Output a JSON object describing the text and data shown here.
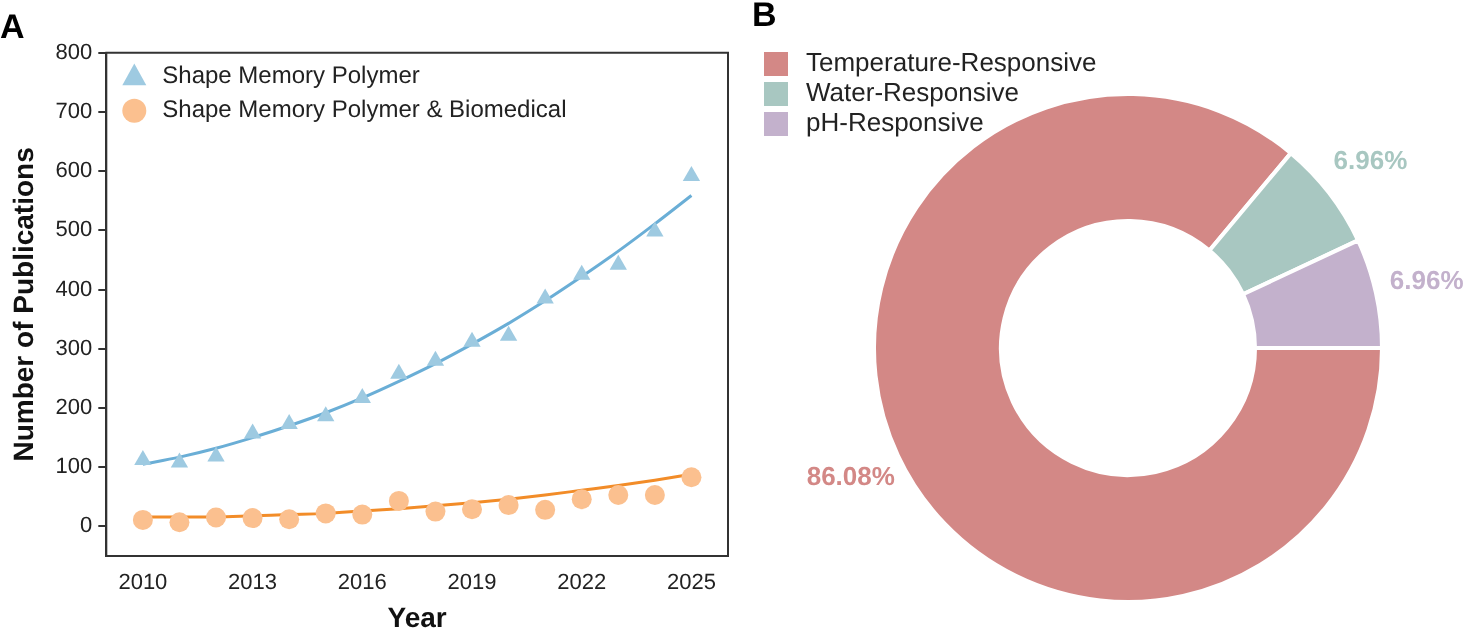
{
  "chart_data": [
    {
      "type": "scatter",
      "title": "A",
      "xlabel": "Year",
      "ylabel": "Number of Publications",
      "x": [
        2010,
        2011,
        2012,
        2013,
        2014,
        2015,
        2016,
        2017,
        2018,
        2019,
        2020,
        2021,
        2022,
        2023,
        2024,
        2025
      ],
      "xlim": [
        2009,
        2026
      ],
      "xticks": [
        2010,
        2013,
        2016,
        2019,
        2022,
        2025
      ],
      "ylim": [
        -50,
        800
      ],
      "yticks": [
        0,
        100,
        200,
        300,
        400,
        500,
        600,
        700,
        800
      ],
      "grid": false,
      "legend": "top left",
      "series": [
        {
          "name": "Shape Memory Polymer",
          "type": "scatter",
          "marker": "triangle",
          "color": "#9ecae1",
          "values": [
            112,
            108,
            118,
            157,
            173,
            186,
            217,
            258,
            280,
            312,
            322,
            385,
            425,
            442,
            498,
            592
          ]
        },
        {
          "name": "Shape Memory Polymer & Biomedical",
          "type": "scatter",
          "marker": "circle",
          "color": "#fbc08f",
          "values": [
            11,
            7,
            15,
            14,
            12,
            22,
            20,
            43,
            25,
            29,
            36,
            28,
            46,
            53,
            53,
            83
          ]
        },
        {
          "type": "line",
          "marker": "none",
          "color": "#6aaed6",
          "values": [
            105,
            117,
            132,
            150,
            170,
            192,
            217,
            245,
            275,
            308,
            343,
            381,
            422,
            465,
            511,
            559
          ]
        },
        {
          "type": "line",
          "marker": "none",
          "color": "#f28c28",
          "values": [
            16,
            16,
            16,
            18,
            20,
            22,
            26,
            30,
            35,
            40,
            46,
            53,
            61,
            69,
            78,
            88
          ]
        }
      ]
    },
    {
      "type": "donut",
      "title": "B",
      "legend": "top left",
      "categories": [
        "Temperature-Responsive",
        "Water-Responsive",
        "pH-Responsive"
      ],
      "values": [
        86.08,
        6.96,
        6.96
      ],
      "colors": [
        "#d38886",
        "#a8c7c1",
        "#c3b1cc"
      ],
      "value_labels": [
        "86.08%",
        "6.96%",
        "6.96%"
      ]
    }
  ]
}
